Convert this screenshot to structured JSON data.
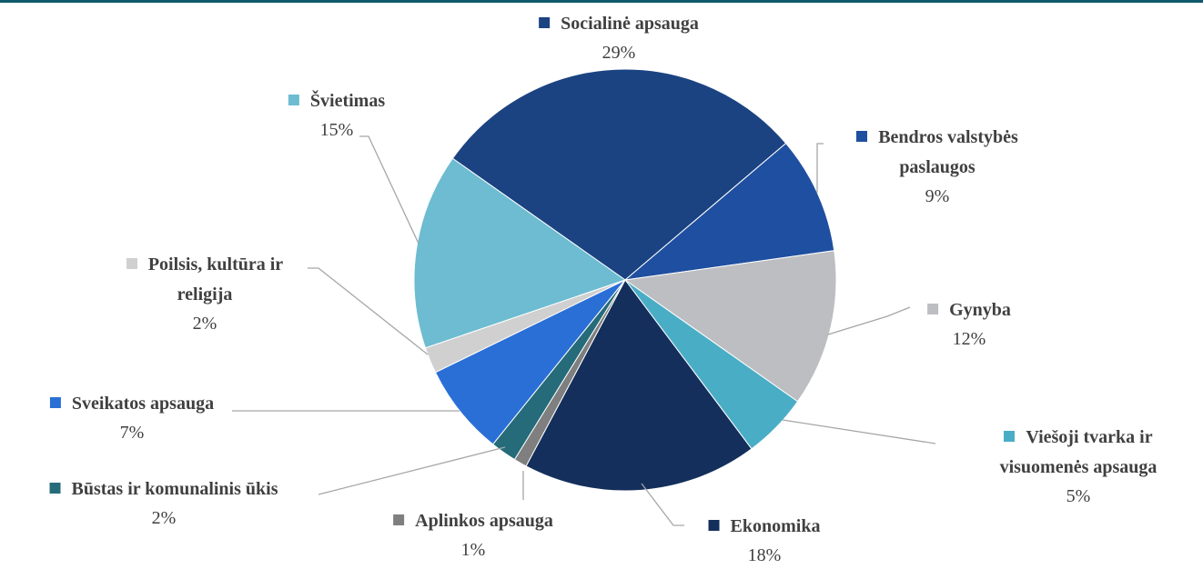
{
  "chart_data": {
    "type": "pie",
    "categories": [
      "Socialinė apsauga",
      "Bendros valstybės paslaugos",
      "Gynyba",
      "Viešoji tvarka ir visuomenės apsauga",
      "Ekonomika",
      "Aplinkos apsauga",
      "Būstas ir komunalinis ūkis",
      "Sveikatos apsauga",
      "Poilsis, kultūra ir religija",
      "Švietimas"
    ],
    "values": [
      29,
      9,
      12,
      5,
      18,
      1,
      2,
      7,
      2,
      15
    ],
    "value_labels": [
      "29%",
      "9%",
      "12%",
      "5%",
      "18%",
      "1%",
      "2%",
      "7%",
      "2%",
      "15%"
    ],
    "colors": [
      "#1b4382",
      "#1f4fa0",
      "#bdbec1",
      "#4aadc6",
      "#142f5c",
      "#7f7f7f",
      "#256b7a",
      "#2a6fd6",
      "#d0d0d0",
      "#6dbcd1"
    ]
  }
}
